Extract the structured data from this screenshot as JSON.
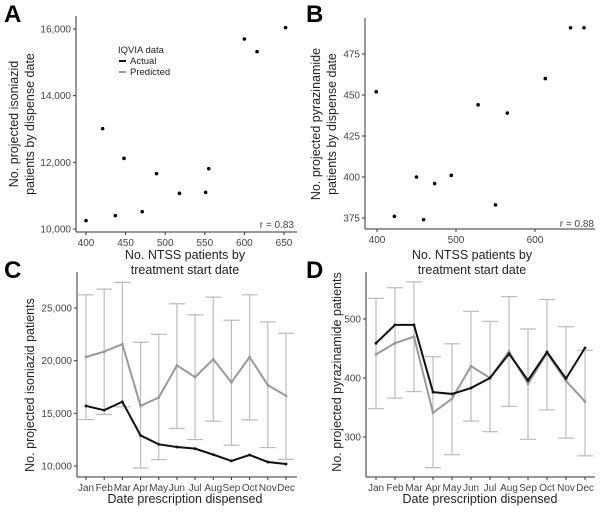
{
  "chart_data": [
    {
      "panel": "A",
      "type": "scatter",
      "xlabel": [
        "No. NTSS patients by",
        "treatment start date"
      ],
      "ylabel": [
        "No. projected isoniazid",
        "patients by dispense date"
      ],
      "xticks": [
        400,
        450,
        500,
        550,
        600,
        650
      ],
      "yticks": [
        10000,
        12000,
        14000,
        16000
      ],
      "ytick_labels": [
        "10,000",
        "12,000",
        "14,000",
        "16,000"
      ],
      "x": [
        400,
        421,
        437,
        448,
        471,
        489,
        518,
        551,
        555,
        600,
        616,
        652
      ],
      "y": [
        10250,
        13010,
        10400,
        12120,
        10520,
        11660,
        11070,
        11100,
        11810,
        15700,
        15320,
        16040
      ],
      "annotation": "r = 0.83",
      "legend": {
        "title": "IQVIA data",
        "entries": [
          "Actual",
          "Predicted"
        ],
        "colors": [
          "#111111",
          "#999999"
        ],
        "placement": "top-left"
      }
    },
    {
      "panel": "B",
      "type": "scatter",
      "xlabel": [
        "No. NTSS patients by",
        "treatment start date"
      ],
      "ylabel": [
        "No. projected pyrazinamide",
        "patients by dispense date"
      ],
      "xticks": [
        400,
        500,
        600
      ],
      "yticks": [
        375,
        400,
        425,
        450,
        475
      ],
      "ytick_labels": [
        "375",
        "400",
        "425",
        "450",
        "475"
      ],
      "x": [
        399,
        422,
        450,
        459,
        473,
        494,
        528,
        550,
        565,
        613,
        645,
        662
      ],
      "y": [
        452,
        376,
        400,
        374,
        396,
        401,
        444,
        383,
        439,
        460,
        491,
        491
      ],
      "annotation": "r = 0.88"
    },
    {
      "panel": "C",
      "type": "line",
      "xlabel": "Date prescription dispensed",
      "ylabel": "No. projected isoniazid patients",
      "categories": [
        "Jan",
        "Feb",
        "Mar",
        "Apr",
        "May",
        "Jun",
        "Jul",
        "Aug",
        "Sep",
        "Oct",
        "Nov",
        "Dec"
      ],
      "yticks": [
        10000,
        15000,
        20000,
        25000
      ],
      "ytick_labels": [
        "10,000",
        "15,000",
        "20,000",
        "25,000"
      ],
      "series": [
        {
          "name": "Actual",
          "color": "#111111",
          "values": [
            15700,
            15300,
            16100,
            12900,
            12060,
            11800,
            11650,
            11080,
            10480,
            11050,
            10380,
            10190
          ]
        },
        {
          "name": "Predicted",
          "color": "#999999",
          "values": [
            20350,
            20860,
            21560,
            15700,
            16500,
            19550,
            18440,
            20130,
            17940,
            20350,
            17680,
            16670
          ],
          "upper": [
            26250,
            26790,
            27430,
            21750,
            22510,
            25400,
            24350,
            26030,
            23840,
            26250,
            23680,
            22600
          ],
          "lower": [
            14410,
            14890,
            15620,
            9810,
            10600,
            13560,
            12510,
            14250,
            11970,
            14380,
            11750,
            10630
          ]
        }
      ]
    },
    {
      "panel": "D",
      "type": "line",
      "xlabel": "Date prescription dispensed",
      "ylabel": "No. projected pyrazinamide patients",
      "categories": [
        "Jan",
        "Feb",
        "Mar",
        "Apr",
        "May",
        "Jun",
        "Jul",
        "Aug",
        "Sep",
        "Oct",
        "Nov",
        "Dec"
      ],
      "yticks": [
        300,
        400,
        500
      ],
      "ytick_labels": [
        "300",
        "400",
        "500"
      ],
      "series": [
        {
          "name": "Actual",
          "color": "#111111",
          "values": [
            459,
            490,
            490,
            376,
            373,
            383,
            400,
            441,
            396,
            444,
            399,
            451
          ]
        },
        {
          "name": "Predicted",
          "color": "#999999",
          "values": [
            440,
            459,
            470,
            341,
            365,
            420,
            400,
            445,
            390,
            442,
            395,
            360
          ],
          "upper": [
            535,
            553,
            563,
            436,
            458,
            513,
            496,
            538,
            483,
            533,
            487,
            447
          ],
          "lower": [
            348,
            366,
            377,
            248,
            270,
            327,
            309,
            352,
            296,
            346,
            298,
            268
          ]
        }
      ]
    }
  ]
}
